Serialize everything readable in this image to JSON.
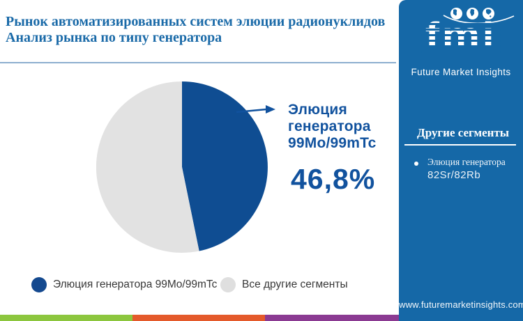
{
  "header": {
    "title_line1": "Рынок автоматизированных систем элюции радионуклидов",
    "title_line2": "Анализ рынка по типу генератора"
  },
  "brand": {
    "logo_text": "fmi",
    "tagline": "Future Market Insights",
    "globe_icons": [
      "americas-globe-icon",
      "europe-africa-globe-icon",
      "asia-australia-globe-icon"
    ]
  },
  "chart_data": {
    "type": "pie",
    "title": "Анализ рынка по типу генератора",
    "slices": [
      {
        "label": "Элюция генератора 99Mo/99mTc",
        "value": 46.8,
        "color": "#0F4D92"
      },
      {
        "label": "Все другие сегменты",
        "value": 53.2,
        "color": "#E2E2E2"
      }
    ],
    "start_angle_deg": 0,
    "direction": "clockwise",
    "legend_position": "bottom",
    "annotation": {
      "line1": "Элюция",
      "line2": "генератора",
      "line3": "99Mo/99mTc",
      "value_label": "46,8%"
    }
  },
  "legend": {
    "items": [
      {
        "label": "Элюция генератора 99Mo/99mTc",
        "color": "#14498F"
      },
      {
        "label": "Все другие сегменты",
        "color": "#DFDFDF"
      }
    ]
  },
  "sidebar": {
    "bg_color": "#1568A7",
    "heading": "Другие сегменты",
    "items": [
      {
        "line1": "Элюция генератора",
        "line2": "82Sr/82Rb"
      }
    ],
    "website": "www.futuremarketinsights.com"
  },
  "footer": {
    "stripe_colors": [
      "#8CC63E",
      "#E45A2B",
      "#8B3A92"
    ]
  }
}
